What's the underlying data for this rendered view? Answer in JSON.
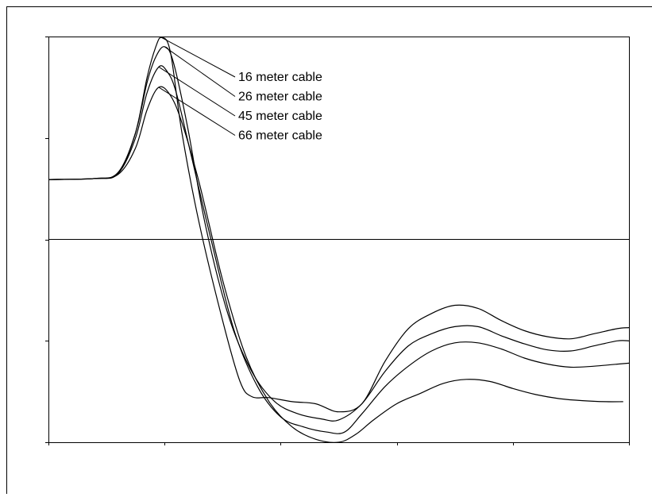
{
  "chart_data": {
    "type": "line",
    "title": "",
    "xlabel": "",
    "ylabel": "",
    "xlim": [
      0,
      10
    ],
    "ylim": [
      -2,
      2
    ],
    "grid": false,
    "legend": "inline labels with leader lines, top-center",
    "series": [
      {
        "name": "16 meter cable",
        "x": [
          0,
          0.8,
          1.2,
          1.5,
          1.7,
          1.85,
          1.95,
          2.1,
          2.3,
          2.6,
          3.0,
          3.3,
          3.5,
          3.8,
          4.2,
          4.6,
          5.0,
          5.4,
          5.8,
          6.2,
          6.6,
          7.0,
          7.4,
          7.8,
          8.2,
          8.6,
          9.0,
          9.4,
          9.8,
          10.0
        ],
        "y": [
          0.59,
          0.6,
          0.65,
          1.05,
          1.6,
          1.9,
          1.99,
          1.85,
          1.05,
          0.15,
          -0.8,
          -1.4,
          -1.55,
          -1.56,
          -1.6,
          -1.62,
          -1.7,
          -1.62,
          -1.2,
          -0.88,
          -0.73,
          -0.65,
          -0.68,
          -0.8,
          -0.9,
          -0.96,
          -0.98,
          -0.93,
          -0.88,
          -0.87
        ]
      },
      {
        "name": "26 meter cable",
        "x": [
          0,
          0.8,
          1.2,
          1.5,
          1.7,
          1.85,
          2.0,
          2.15,
          2.4,
          2.7,
          3.1,
          3.5,
          3.9,
          4.3,
          4.7,
          5.0,
          5.4,
          5.8,
          6.2,
          6.6,
          7.0,
          7.4,
          7.8,
          8.2,
          8.6,
          9.0,
          9.4,
          9.8,
          10.0
        ],
        "y": [
          0.59,
          0.6,
          0.66,
          1.05,
          1.55,
          1.8,
          1.9,
          1.75,
          1.1,
          0.15,
          -0.75,
          -1.3,
          -1.6,
          -1.72,
          -1.77,
          -1.78,
          -1.62,
          -1.3,
          -1.05,
          -0.93,
          -0.86,
          -0.86,
          -0.95,
          -1.03,
          -1.09,
          -1.1,
          -1.05,
          -1.0,
          -1.0
        ]
      },
      {
        "name": "45 meter cable",
        "x": [
          0,
          0.8,
          1.2,
          1.5,
          1.7,
          1.9,
          2.05,
          2.2,
          2.45,
          2.8,
          3.2,
          3.6,
          4.0,
          4.4,
          4.8,
          5.1,
          5.4,
          5.8,
          6.2,
          6.6,
          7.0,
          7.4,
          7.8,
          8.2,
          8.6,
          9.0,
          9.4,
          9.8,
          10.0
        ],
        "y": [
          0.59,
          0.6,
          0.65,
          1.0,
          1.45,
          1.7,
          1.65,
          1.45,
          0.85,
          0.0,
          -0.9,
          -1.45,
          -1.75,
          -1.85,
          -1.9,
          -1.9,
          -1.72,
          -1.45,
          -1.25,
          -1.1,
          -1.02,
          -1.02,
          -1.08,
          -1.17,
          -1.23,
          -1.26,
          -1.25,
          -1.23,
          -1.22
        ]
      },
      {
        "name": "66 meter cable",
        "x": [
          0,
          0.8,
          1.2,
          1.5,
          1.7,
          1.9,
          2.1,
          2.3,
          2.6,
          3.0,
          3.4,
          3.8,
          4.2,
          4.6,
          5.0,
          5.3,
          5.6,
          6.0,
          6.4,
          6.8,
          7.2,
          7.6,
          8.0,
          8.4,
          8.8,
          9.2,
          9.6,
          9.9
        ],
        "y": [
          0.59,
          0.6,
          0.64,
          0.9,
          1.28,
          1.5,
          1.42,
          1.15,
          0.55,
          -0.4,
          -1.15,
          -1.6,
          -1.85,
          -1.97,
          -2.0,
          -1.92,
          -1.78,
          -1.62,
          -1.52,
          -1.42,
          -1.38,
          -1.4,
          -1.47,
          -1.53,
          -1.57,
          -1.59,
          -1.6,
          -1.6
        ]
      }
    ]
  }
}
